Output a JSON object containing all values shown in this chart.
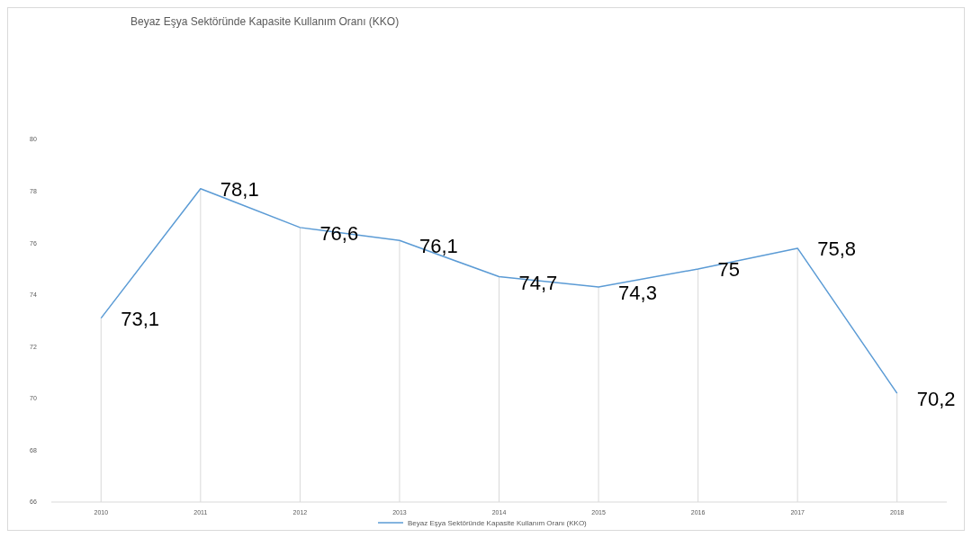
{
  "chart_data": {
    "type": "line",
    "title": "Beyaz Eşya Sektöründe Kapasite Kullanım Oranı (KKO)",
    "categories": [
      "2010",
      "2011",
      "2012",
      "2013",
      "2014",
      "2015",
      "2016",
      "2017",
      "2018"
    ],
    "series": [
      {
        "name": "Beyaz Eşya Sektöründe Kapasite Kullanım Oranı (KKO)",
        "color": "#5b9bd5",
        "values": [
          73.1,
          78.1,
          76.6,
          76.1,
          74.7,
          74.3,
          75,
          75.8,
          70.2
        ],
        "value_labels": [
          "73,1",
          "78,1",
          "76,6",
          "76,1",
          "74,7",
          "74,3",
          "75",
          "75,8",
          "70,2"
        ]
      }
    ],
    "ylim": [
      66,
      80
    ],
    "yticks": [
      66,
      68,
      70,
      72,
      74,
      76,
      78,
      80
    ],
    "grid": "x",
    "legend": "bottom",
    "marker": "none",
    "line_style": "solid"
  }
}
